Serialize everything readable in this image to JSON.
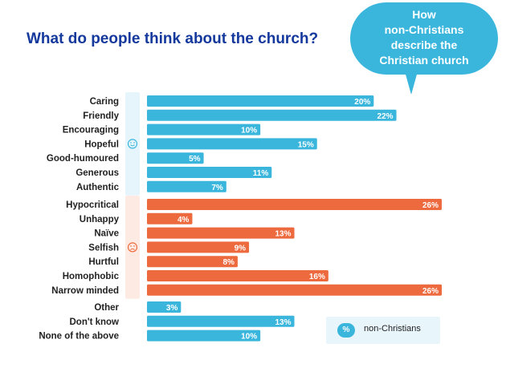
{
  "title": "What do people think about the church?",
  "bubble": {
    "lines": [
      "How",
      "non-Christians",
      "describe the",
      "Christian church"
    ]
  },
  "legend": {
    "symbol": "%",
    "label": "non-Christians",
    "color": "#3ab6dd"
  },
  "colors": {
    "positive": "#3ab6dd",
    "negative": "#ed6a3e",
    "other": "#3ab6dd",
    "group_bg_positive": "#e6f4fb",
    "group_bg_negative": "#fdebe3"
  },
  "icons": {
    "positive": "smiley-face-icon",
    "negative": "sad-face-icon"
  },
  "chart_data": {
    "type": "bar",
    "orientation": "horizontal",
    "title": "What do people think about the church?",
    "value_suffix": "%",
    "xlim": [
      0,
      26
    ],
    "grid": false,
    "legend_position": "bottom-right",
    "series": [
      {
        "name": "non-Christians",
        "values": [
          20,
          22,
          10,
          15,
          5,
          11,
          7,
          26,
          4,
          13,
          9,
          8,
          16,
          26,
          3,
          13,
          10
        ]
      }
    ],
    "categories": [
      "Caring",
      "Friendly",
      "Encouraging",
      "Hopeful",
      "Good-humoured",
      "Generous",
      "Authentic",
      "Hypocritical",
      "Unhappy",
      "Naïve",
      "Selfish",
      "Hurtful",
      "Homophobic",
      "Narrow minded",
      "Other",
      "Don't know",
      "None of the above"
    ],
    "groups": [
      {
        "key": "positive",
        "start": 0,
        "end": 6
      },
      {
        "key": "negative",
        "start": 7,
        "end": 13
      },
      {
        "key": "other",
        "start": 14,
        "end": 16
      }
    ],
    "data_labels": [
      "20%",
      "22%",
      "10%",
      "15%",
      "5%",
      "11%",
      "7%",
      "26%",
      "4%",
      "13%",
      "9%",
      "8%",
      "16%",
      "26%",
      "3%",
      "13%",
      "10%"
    ]
  }
}
